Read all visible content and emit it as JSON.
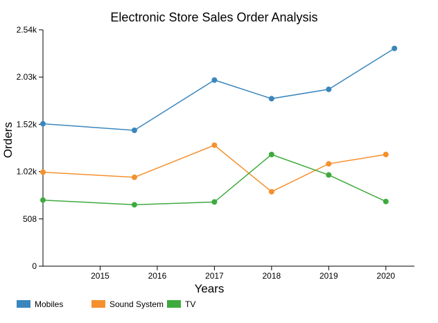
{
  "chart_data": {
    "type": "line",
    "title": "Electronic Store Sales Order Analysis",
    "xlabel": "Years",
    "ylabel": "Orders",
    "x_range": [
      2014.0,
      2020.5
    ],
    "ylim": [
      0,
      2540
    ],
    "y_ticks": [
      {
        "value": 0,
        "label": "0"
      },
      {
        "value": 508,
        "label": "508"
      },
      {
        "value": 1016,
        "label": "1.02k"
      },
      {
        "value": 1524,
        "label": "1.52k"
      },
      {
        "value": 2032,
        "label": "2.03k"
      },
      {
        "value": 2540,
        "label": "2.54k"
      }
    ],
    "x_ticks": [
      {
        "value": 2015,
        "label": "2015"
      },
      {
        "value": 2016,
        "label": "2016"
      },
      {
        "value": 2017,
        "label": "2017"
      },
      {
        "value": 2018,
        "label": "2018"
      },
      {
        "value": 2019,
        "label": "2019"
      },
      {
        "value": 2020,
        "label": "2020"
      }
    ],
    "series": [
      {
        "name": "Mobiles",
        "color": "#3a86bd",
        "points": [
          {
            "x": 2014.0,
            "y": 1530
          },
          {
            "x": 2015.6,
            "y": 1460
          },
          {
            "x": 2017.0,
            "y": 2000
          },
          {
            "x": 2018.0,
            "y": 1800
          },
          {
            "x": 2019.0,
            "y": 1900
          },
          {
            "x": 2020.15,
            "y": 2340
          }
        ]
      },
      {
        "name": "Sound System",
        "color": "#f5902e",
        "points": [
          {
            "x": 2014.0,
            "y": 1010
          },
          {
            "x": 2015.6,
            "y": 955
          },
          {
            "x": 2017.0,
            "y": 1300
          },
          {
            "x": 2018.0,
            "y": 800
          },
          {
            "x": 2019.0,
            "y": 1100
          },
          {
            "x": 2020.0,
            "y": 1200
          }
        ]
      },
      {
        "name": "TV",
        "color": "#3eaa3e",
        "points": [
          {
            "x": 2014.0,
            "y": 710
          },
          {
            "x": 2015.6,
            "y": 660
          },
          {
            "x": 2017.0,
            "y": 690
          },
          {
            "x": 2018.0,
            "y": 1200
          },
          {
            "x": 2019.0,
            "y": 980
          },
          {
            "x": 2020.0,
            "y": 695
          }
        ]
      }
    ],
    "grid": false,
    "legend_position": "bottom-left"
  }
}
